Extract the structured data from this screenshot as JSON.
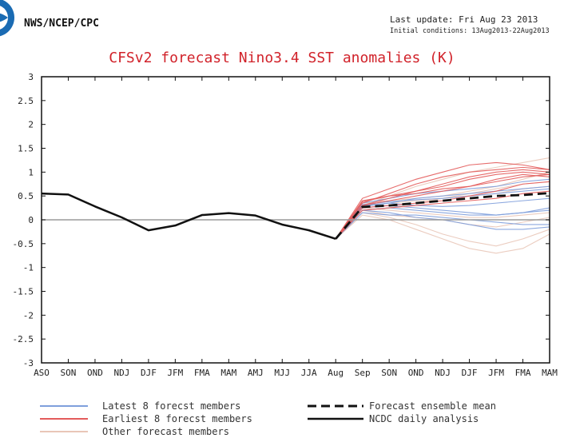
{
  "header": {
    "agency": "NWS/NCEP/CPC",
    "last_update": "Last update: Fri Aug 23 2013",
    "initial_conditions": "Initial conditions: 13Aug2013-22Aug2013"
  },
  "colors": {
    "title": "#d1222a",
    "latest": "#7f9fdc",
    "earliest": "#e35b5b",
    "other": "#e9c6b8",
    "analysis": "#111111",
    "zero_line": "#9a9a9a"
  },
  "chart_data": {
    "type": "line",
    "title": "CFSv2 forecast Nino3.4 SST anomalies (K)",
    "categories": [
      "ASO",
      "SON",
      "OND",
      "NDJ",
      "DJF",
      "JFM",
      "FMA",
      "MAM",
      "AMJ",
      "MJJ",
      "JJA",
      "Aug",
      "Sep",
      "SON",
      "OND",
      "NDJ",
      "DJF",
      "JFM",
      "FMA",
      "MAM"
    ],
    "ylim": [
      -3,
      3
    ],
    "yticks": [
      3,
      2.5,
      2,
      1.5,
      1,
      0.5,
      0,
      -0.5,
      -1,
      -1.5,
      -2,
      -2.5,
      -3
    ],
    "ytick_labels": [
      "3",
      "2.5",
      "2",
      "1.5",
      "1",
      "0.5",
      "0",
      "-0.5",
      "-1",
      "-1.5",
      "-2",
      "-2.5",
      "-3"
    ],
    "analysis": {
      "name": "NCDC daily analysis",
      "values": [
        0.55,
        0.53,
        0.28,
        0.05,
        -0.22,
        -0.12,
        0.1,
        0.14,
        0.09,
        -0.1,
        -0.22,
        -0.4
      ]
    },
    "ensemble_mean": {
      "name": "Forecast ensemble mean",
      "values": [
        -0.4,
        0.27,
        0.3,
        0.35,
        0.4,
        0.45,
        0.5,
        0.52,
        0.56
      ]
    },
    "forecast_start_index": 11,
    "members": {
      "latest": [
        [
          -0.4,
          0.2,
          0.15,
          0.05,
          0.0,
          -0.1,
          -0.2,
          -0.2,
          -0.15
        ],
        [
          -0.4,
          0.25,
          0.3,
          0.25,
          0.2,
          0.15,
          0.1,
          0.15,
          0.2
        ],
        [
          -0.4,
          0.3,
          0.35,
          0.45,
          0.5,
          0.55,
          0.6,
          0.65,
          0.7
        ],
        [
          -0.4,
          0.15,
          0.1,
          0.1,
          0.05,
          0.0,
          -0.05,
          -0.1,
          -0.1
        ],
        [
          -0.4,
          0.28,
          0.35,
          0.3,
          0.28,
          0.3,
          0.35,
          0.4,
          0.45
        ],
        [
          -0.4,
          0.35,
          0.45,
          0.55,
          0.6,
          0.65,
          0.7,
          0.8,
          0.85
        ],
        [
          -0.4,
          0.2,
          0.25,
          0.2,
          0.15,
          0.1,
          0.1,
          0.15,
          0.25
        ],
        [
          -0.4,
          0.32,
          0.38,
          0.42,
          0.45,
          0.5,
          0.55,
          0.6,
          0.65
        ]
      ],
      "earliest": [
        [
          -0.4,
          0.3,
          0.45,
          0.6,
          0.75,
          0.9,
          1.0,
          1.05,
          1.0
        ],
        [
          -0.4,
          0.4,
          0.5,
          0.55,
          0.65,
          0.7,
          0.8,
          0.9,
          0.95
        ],
        [
          -0.4,
          0.35,
          0.55,
          0.75,
          0.9,
          1.0,
          1.05,
          1.1,
          1.05
        ],
        [
          -0.4,
          0.3,
          0.4,
          0.5,
          0.6,
          0.7,
          0.85,
          0.95,
          0.9
        ],
        [
          -0.4,
          0.25,
          0.3,
          0.35,
          0.4,
          0.5,
          0.6,
          0.75,
          0.8
        ],
        [
          -0.4,
          0.45,
          0.65,
          0.85,
          1.0,
          1.15,
          1.2,
          1.15,
          1.05
        ],
        [
          -0.4,
          0.2,
          0.25,
          0.3,
          0.35,
          0.4,
          0.45,
          0.55,
          0.6
        ],
        [
          -0.4,
          0.38,
          0.5,
          0.6,
          0.7,
          0.85,
          0.95,
          1.0,
          0.95
        ]
      ],
      "other": [
        [
          -0.4,
          0.1,
          0.0,
          -0.2,
          -0.4,
          -0.6,
          -0.7,
          -0.6,
          -0.3
        ],
        [
          -0.4,
          0.15,
          0.05,
          -0.1,
          -0.3,
          -0.45,
          -0.55,
          -0.4,
          -0.2
        ],
        [
          -0.4,
          0.3,
          0.5,
          0.7,
          0.85,
          1.0,
          1.1,
          1.2,
          1.3
        ],
        [
          -0.4,
          0.2,
          0.25,
          0.35,
          0.45,
          0.55,
          0.65,
          0.75,
          0.8
        ],
        [
          -0.4,
          0.25,
          0.2,
          0.15,
          0.1,
          0.05,
          0.05,
          0.1,
          0.15
        ],
        [
          -0.4,
          0.35,
          0.4,
          0.45,
          0.5,
          0.6,
          0.7,
          0.85,
          1.0
        ],
        [
          -0.4,
          0.2,
          0.1,
          0.05,
          0.0,
          -0.1,
          -0.15,
          -0.05,
          0.05
        ],
        [
          -0.4,
          0.3,
          0.35,
          0.4,
          0.45,
          0.5,
          0.55,
          0.65,
          0.7
        ]
      ]
    },
    "legend": {
      "latest": "Latest 8 forecst members",
      "earliest": "Earliest 8 forecst members",
      "other": "Other forecast members",
      "mean": "Forecast ensemble mean",
      "analysis": "NCDC daily analysis"
    }
  }
}
